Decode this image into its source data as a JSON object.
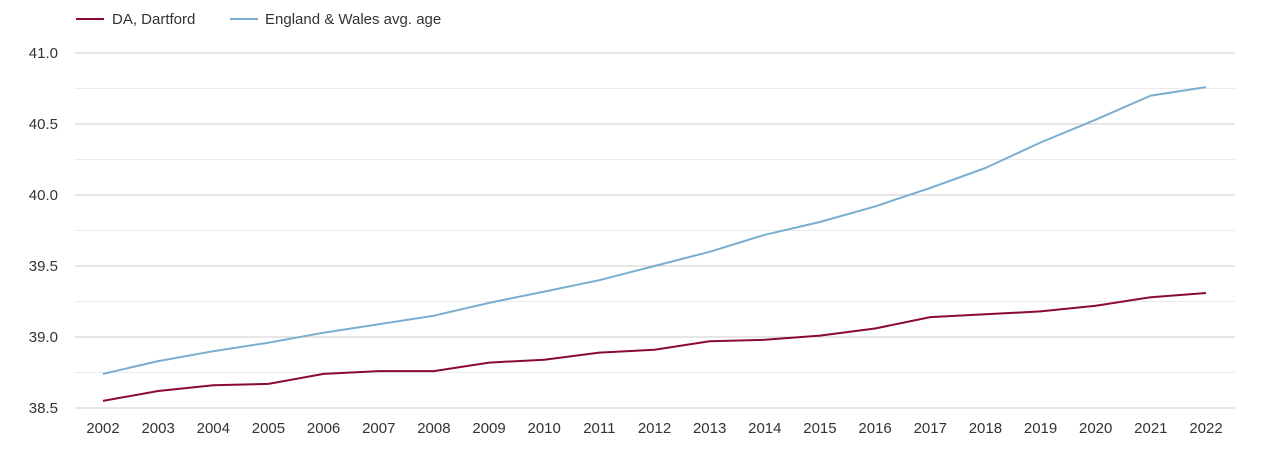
{
  "chart_data": {
    "type": "line",
    "title": "",
    "xlabel": "",
    "ylabel": "",
    "x": [
      "2002",
      "2003",
      "2004",
      "2005",
      "2006",
      "2007",
      "2008",
      "2009",
      "2010",
      "2011",
      "2012",
      "2013",
      "2014",
      "2015",
      "2016",
      "2017",
      "2018",
      "2019",
      "2020",
      "2021",
      "2022"
    ],
    "ylim": [
      38.5,
      41.0
    ],
    "yticks": [
      "38.5",
      "39.0",
      "39.5",
      "40.0",
      "40.5",
      "41.0"
    ],
    "grid": "horizontal",
    "legend_position": "top-left",
    "series": [
      {
        "name": "DA, Dartford",
        "color": "#8b0a32",
        "values": [
          38.55,
          38.62,
          38.66,
          38.67,
          38.74,
          38.76,
          38.76,
          38.82,
          38.84,
          38.89,
          38.91,
          38.97,
          38.98,
          39.01,
          39.06,
          39.14,
          39.16,
          39.18,
          39.22,
          39.28,
          39.31
        ]
      },
      {
        "name": "England & Wales avg. age",
        "color": "#7aaed0",
        "values": [
          38.74,
          38.83,
          38.9,
          38.96,
          39.03,
          39.09,
          39.15,
          39.24,
          39.32,
          39.4,
          39.5,
          39.6,
          39.72,
          39.81,
          39.92,
          40.05,
          40.19,
          40.37,
          40.53,
          40.7,
          40.76
        ]
      }
    ]
  }
}
